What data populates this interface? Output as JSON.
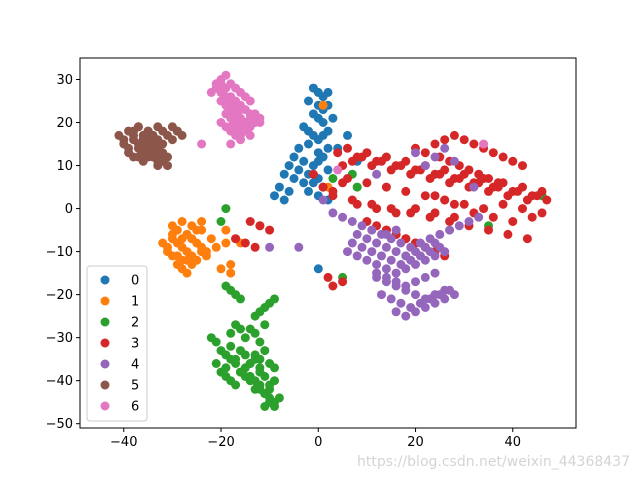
{
  "chart_data": {
    "type": "scatter",
    "title": "",
    "xlabel": "",
    "ylabel": "",
    "xlim": [
      -49,
      53
    ],
    "ylim": [
      -51,
      35
    ],
    "xticks": [
      -40,
      -20,
      0,
      20,
      40
    ],
    "yticks": [
      -50,
      -40,
      -30,
      -20,
      -10,
      0,
      10,
      20,
      30
    ],
    "grid": false,
    "legend_location": "lower-left",
    "series": [
      {
        "name": "0",
        "color": "#1f77b4",
        "x": [
          -1,
          0,
          1,
          2,
          -2,
          0,
          1,
          2,
          -1,
          0,
          1,
          3,
          -3,
          -2,
          -1,
          0,
          1,
          2,
          -4,
          -2,
          0,
          1,
          2,
          -5,
          -3,
          -1,
          0,
          -6,
          -4,
          -2,
          0,
          -7,
          -5,
          -3,
          -8,
          -6,
          -9,
          -7,
          -1,
          1,
          -2,
          0,
          2,
          6,
          4,
          8,
          2,
          0
        ],
        "y": [
          28,
          27,
          26,
          27,
          25,
          24,
          23,
          24,
          22,
          21,
          20,
          21,
          19,
          18,
          17,
          16,
          17,
          18,
          14,
          15,
          13,
          12,
          14,
          12,
          11,
          10,
          11,
          10,
          9,
          8,
          7,
          8,
          7,
          6,
          5,
          4,
          3,
          2,
          6,
          5,
          4,
          3,
          2,
          17,
          14,
          11,
          9,
          -14
        ]
      },
      {
        "name": "1",
        "color": "#ff7f0e",
        "x": [
          -32,
          -31,
          -30,
          -29,
          -28,
          -27,
          -26,
          -25,
          -24,
          -23,
          -22,
          -31,
          -30,
          -29,
          -28,
          -27,
          -26,
          -25,
          -24,
          -23,
          -30,
          -29,
          -28,
          -27,
          -26,
          -25,
          -24,
          -29,
          -28,
          -27,
          -26,
          -25,
          -30,
          -28,
          -26,
          -24,
          -27,
          -21,
          -19,
          -17,
          -19,
          -18,
          -20,
          -18,
          -16,
          -12,
          -24,
          1,
          2
        ],
        "y": [
          -8,
          -9,
          -7,
          -8,
          -9,
          -6,
          -7,
          -8,
          -9,
          -10,
          -7,
          -10,
          -11,
          -11,
          -12,
          -10,
          -11,
          -12,
          -10,
          -11,
          -6,
          -5,
          -7,
          -6,
          -7,
          -5,
          -5,
          -13,
          -14,
          -12,
          -13,
          -12,
          -4,
          -3,
          -4,
          -3,
          -15,
          -9,
          -8,
          -7,
          -5,
          -13,
          -14,
          -15,
          -8,
          -4,
          -10,
          24,
          5
        ]
      },
      {
        "name": "2",
        "color": "#2ca02c",
        "x": [
          -22,
          -21,
          -20,
          -19,
          -18,
          -17,
          -16,
          -15,
          -14,
          -13,
          -12,
          -21,
          -20,
          -19,
          -18,
          -17,
          -16,
          -15,
          -14,
          -13,
          -12,
          -11,
          -10,
          -19,
          -18,
          -17,
          -16,
          -15,
          -14,
          -13,
          -12,
          -11,
          -10,
          -9,
          -14,
          -13,
          -12,
          -11,
          -10,
          -9,
          -12,
          -11,
          -10,
          -9,
          -8,
          -11,
          -10,
          -9,
          -15,
          -14,
          -13,
          -12,
          -11,
          -18,
          -17,
          -16,
          -19,
          -18,
          -10,
          -11,
          -9,
          -13,
          -12,
          -17,
          -16,
          -19,
          -20,
          5,
          8,
          3,
          7,
          46,
          35
        ],
        "y": [
          -30,
          -31,
          -33,
          -34,
          -32,
          -35,
          -33,
          -34,
          -36,
          -35,
          -37,
          -36,
          -38,
          -37,
          -35,
          -36,
          -38,
          -37,
          -39,
          -40,
          -38,
          -39,
          -41,
          -39,
          -40,
          -41,
          -38,
          -39,
          -40,
          -42,
          -41,
          -43,
          -42,
          -40,
          -36,
          -34,
          -35,
          -33,
          -36,
          -37,
          -42,
          -43,
          -44,
          -45,
          -44,
          -46,
          -45,
          -46,
          -30,
          -28,
          -29,
          -31,
          -27,
          -29,
          -27,
          -28,
          -18,
          -19,
          -22,
          -23,
          -21,
          -25,
          -24,
          -20,
          -21,
          0,
          -3,
          -16,
          5,
          7,
          8,
          3,
          -4
        ]
      },
      {
        "name": "3",
        "color": "#d62728",
        "x": [
          4,
          6,
          8,
          10,
          12,
          14,
          16,
          18,
          20,
          22,
          24,
          26,
          28,
          30,
          32,
          34,
          36,
          38,
          40,
          42,
          44,
          46,
          5,
          7,
          9,
          11,
          13,
          15,
          17,
          19,
          21,
          23,
          25,
          27,
          29,
          31,
          33,
          35,
          37,
          39,
          41,
          43,
          45,
          47,
          6,
          10,
          14,
          18,
          22,
          26,
          30,
          34,
          38,
          42,
          46,
          8,
          12,
          16,
          20,
          24,
          28,
          32,
          36,
          40,
          44,
          3,
          7,
          11,
          15,
          19,
          23,
          27,
          31,
          35,
          39,
          43,
          20,
          22,
          24,
          26,
          28,
          30,
          32,
          34,
          36,
          38,
          40,
          42,
          25,
          27,
          29,
          31,
          33,
          35,
          37,
          24,
          26,
          28,
          14,
          16,
          18,
          20,
          22,
          24,
          26,
          10,
          12,
          14,
          16,
          18,
          20,
          22,
          24,
          1,
          3,
          5,
          -1,
          2,
          5,
          3,
          -14,
          -12,
          -10,
          -15,
          -17,
          -13
        ],
        "y": [
          13,
          14,
          12,
          13,
          11,
          12,
          10,
          11,
          9,
          10,
          8,
          9,
          7,
          8,
          6,
          7,
          5,
          6,
          4,
          5,
          3,
          4,
          10,
          11,
          12,
          10,
          11,
          9,
          10,
          8,
          9,
          7,
          8,
          6,
          7,
          5,
          6,
          4,
          5,
          3,
          4,
          2,
          3,
          2,
          7,
          6,
          5,
          4,
          3,
          2,
          1,
          0,
          1,
          0,
          -1,
          1,
          0,
          -1,
          0,
          -1,
          -2,
          -1,
          -2,
          -3,
          -2,
          3,
          2,
          1,
          0,
          -1,
          -2,
          -3,
          -4,
          -5,
          -6,
          -7,
          14,
          13,
          15,
          16,
          17,
          16,
          15,
          14,
          13,
          12,
          11,
          10,
          12,
          11,
          10,
          9,
          8,
          7,
          6,
          3,
          2,
          1,
          -5,
          -6,
          -7,
          -8,
          -9,
          -10,
          -11,
          -3,
          -4,
          -5,
          -6,
          -7,
          -8,
          -9,
          -10,
          5,
          4,
          6,
          8,
          -16,
          -17,
          -18,
          -3,
          -4,
          -5,
          -8,
          -7,
          -9
        ]
      },
      {
        "name": "4",
        "color": "#9467bd",
        "x": [
          6,
          8,
          10,
          12,
          14,
          16,
          18,
          20,
          22,
          24,
          26,
          7,
          9,
          11,
          13,
          15,
          17,
          19,
          21,
          23,
          25,
          8,
          10,
          12,
          14,
          16,
          18,
          20,
          22,
          24,
          12,
          14,
          16,
          18,
          20,
          22,
          24,
          26,
          13,
          15,
          17,
          19,
          21,
          23,
          25,
          27,
          16,
          18,
          20,
          22,
          24,
          26,
          28,
          12,
          14,
          16,
          18,
          20,
          22,
          24,
          3,
          5,
          7,
          9,
          11,
          13,
          15,
          17,
          19,
          21,
          23,
          25,
          27,
          29,
          31,
          33,
          22,
          24,
          26,
          28,
          32,
          -10,
          -4,
          1,
          12,
          20,
          14,
          16
        ],
        "y": [
          -10,
          -11,
          -12,
          -13,
          -14,
          -15,
          -14,
          -13,
          -12,
          -11,
          -10,
          -8,
          -9,
          -10,
          -11,
          -12,
          -13,
          -12,
          -11,
          -10,
          -9,
          -6,
          -7,
          -8,
          -9,
          -10,
          -11,
          -10,
          -9,
          -8,
          -16,
          -17,
          -18,
          -19,
          -20,
          -21,
          -20,
          -19,
          -20,
          -21,
          -22,
          -23,
          -22,
          -21,
          -20,
          -19,
          -24,
          -25,
          -24,
          -23,
          -22,
          -21,
          -20,
          -15,
          -16,
          -17,
          -18,
          -17,
          -16,
          -15,
          -1,
          -2,
          -3,
          -4,
          -5,
          -6,
          -7,
          -8,
          -9,
          -8,
          -7,
          -6,
          -5,
          -4,
          -3,
          -2,
          10,
          12,
          14,
          11,
          5,
          -9,
          -9,
          2,
          8,
          13,
          -6,
          -5
        ]
      },
      {
        "name": "5",
        "color": "#8c564b",
        "x": [
          -41,
          -40,
          -39,
          -38,
          -37,
          -36,
          -35,
          -34,
          -40,
          -39,
          -38,
          -37,
          -36,
          -35,
          -34,
          -33,
          -39,
          -38,
          -37,
          -36,
          -35,
          -34,
          -33,
          -32,
          -38,
          -37,
          -36,
          -35,
          -34,
          -33,
          -32,
          -37,
          -36,
          -35,
          -34,
          -33,
          -32,
          -31,
          -36,
          -35,
          -34,
          -33,
          -32,
          -31,
          -30,
          -29,
          -33,
          -32,
          -31,
          -30,
          -29,
          -28
        ],
        "y": [
          17,
          16,
          18,
          17,
          19,
          16,
          18,
          17,
          15,
          14,
          16,
          15,
          14,
          16,
          15,
          14,
          13,
          12,
          14,
          13,
          12,
          14,
          13,
          12,
          18,
          19,
          17,
          18,
          17,
          19,
          18,
          12,
          11,
          13,
          12,
          11,
          13,
          12,
          16,
          15,
          17,
          16,
          15,
          17,
          16,
          18,
          10,
          11,
          10,
          19,
          18,
          17
        ]
      },
      {
        "name": "6",
        "color": "#e377c2",
        "x": [
          -21,
          -20,
          -19,
          -18,
          -17,
          -16,
          -15,
          -14,
          -20,
          -19,
          -18,
          -17,
          -16,
          -15,
          -14,
          -13,
          -19,
          -18,
          -17,
          -16,
          -15,
          -14,
          -13,
          -12,
          -18,
          -17,
          -16,
          -15,
          -14,
          -13,
          -19,
          -18,
          -17,
          -16,
          -15,
          -14,
          -20,
          -19,
          -18,
          -17,
          -16,
          -20,
          -19,
          -18,
          -17,
          -21,
          -20,
          -22,
          -18,
          -16,
          -24,
          34,
          4,
          -12
        ],
        "y": [
          29,
          30,
          31,
          29,
          28,
          27,
          26,
          25,
          27,
          28,
          26,
          25,
          24,
          23,
          22,
          21,
          24,
          23,
          22,
          21,
          20,
          19,
          20,
          21,
          19,
          18,
          17,
          20,
          21,
          22,
          22,
          21,
          20,
          19,
          18,
          17,
          25,
          26,
          25,
          24,
          23,
          20,
          19,
          18,
          17,
          28,
          29,
          27,
          15,
          16,
          15,
          15,
          9,
          20
        ]
      }
    ]
  },
  "watermark": "https://blog.csdn.net/weixin_44368437"
}
